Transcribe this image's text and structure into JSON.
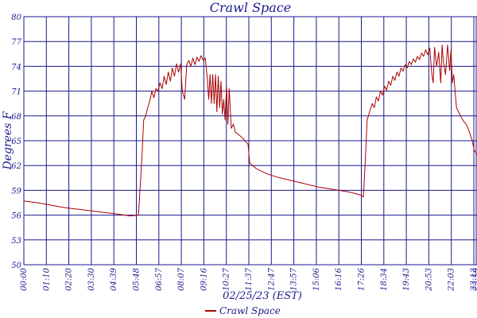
{
  "chart_data": {
    "type": "line",
    "title": "Crawl Space",
    "xlabel": "02/25/23 (EST)",
    "ylabel": "Degrees F",
    "yticks": [
      50,
      53,
      56,
      59,
      62,
      65,
      68,
      71,
      74,
      77,
      80
    ],
    "ylim": [
      50,
      80
    ],
    "xtick_labels": [
      "00:00",
      "01:10",
      "02:20",
      "03:30",
      "04:39",
      "05:48",
      "06:57",
      "08:07",
      "09:16",
      "10:27",
      "11:37",
      "12:47",
      "13:57",
      "15:06",
      "16:16",
      "17:26",
      "18:34",
      "19:43",
      "20:53",
      "22:03",
      "23:12",
      "23:59"
    ],
    "grid": true,
    "legend": "bottom-center",
    "series": [
      {
        "name": "Crawl Space",
        "color": "#aa0000",
        "points": [
          [
            0,
            57.7
          ],
          [
            40,
            57.5
          ],
          [
            80,
            57.2
          ],
          [
            120,
            56.9
          ],
          [
            160,
            56.7
          ],
          [
            200,
            56.5
          ],
          [
            240,
            56.3
          ],
          [
            280,
            56.1
          ],
          [
            310,
            55.9
          ],
          [
            335,
            56.0
          ],
          [
            345,
            63.0
          ],
          [
            350,
            67.5
          ],
          [
            356,
            68.0
          ],
          [
            362,
            69.0
          ],
          [
            368,
            69.8
          ],
          [
            374,
            71.0
          ],
          [
            380,
            70.2
          ],
          [
            386,
            71.3
          ],
          [
            392,
            71.0
          ],
          [
            398,
            72.0
          ],
          [
            404,
            71.3
          ],
          [
            410,
            72.8
          ],
          [
            416,
            71.8
          ],
          [
            422,
            73.3
          ],
          [
            428,
            72.2
          ],
          [
            434,
            73.8
          ],
          [
            440,
            72.8
          ],
          [
            446,
            74.3
          ],
          [
            452,
            73.3
          ],
          [
            458,
            74.3
          ],
          [
            463,
            71.0
          ],
          [
            470,
            70.0
          ],
          [
            476,
            74.2
          ],
          [
            482,
            74.7
          ],
          [
            488,
            74.0
          ],
          [
            494,
            75.0
          ],
          [
            500,
            74.2
          ],
          [
            506,
            75.1
          ],
          [
            512,
            74.6
          ],
          [
            518,
            75.3
          ],
          [
            524,
            74.7
          ],
          [
            530,
            75.0
          ],
          [
            536,
            72.5
          ],
          [
            540,
            70.0
          ],
          [
            544,
            73.0
          ],
          [
            548,
            69.5
          ],
          [
            552,
            73.0
          ],
          [
            556,
            69.5
          ],
          [
            560,
            73.0
          ],
          [
            564,
            68.5
          ],
          [
            568,
            72.8
          ],
          [
            572,
            69.0
          ],
          [
            576,
            72.2
          ],
          [
            580,
            68.2
          ],
          [
            584,
            70.0
          ],
          [
            588,
            67.5
          ],
          [
            592,
            71.5
          ],
          [
            596,
            67.0
          ],
          [
            600,
            71.3
          ],
          [
            606,
            66.5
          ],
          [
            612,
            67.0
          ],
          [
            618,
            66.0
          ],
          [
            626,
            65.8
          ],
          [
            634,
            65.5
          ],
          [
            642,
            65.2
          ],
          [
            650,
            64.8
          ],
          [
            655,
            64.6
          ],
          [
            660,
            62.3
          ],
          [
            680,
            61.6
          ],
          [
            710,
            61.0
          ],
          [
            740,
            60.6
          ],
          [
            770,
            60.3
          ],
          [
            800,
            60.0
          ],
          [
            830,
            59.7
          ],
          [
            860,
            59.4
          ],
          [
            890,
            59.2
          ],
          [
            920,
            59.0
          ],
          [
            950,
            58.8
          ],
          [
            970,
            58.6
          ],
          [
            985,
            58.4
          ],
          [
            992,
            58.2
          ],
          [
            998,
            63.0
          ],
          [
            1003,
            67.5
          ],
          [
            1010,
            68.5
          ],
          [
            1018,
            69.5
          ],
          [
            1024,
            69.0
          ],
          [
            1030,
            70.3
          ],
          [
            1036,
            69.8
          ],
          [
            1042,
            71.0
          ],
          [
            1048,
            70.5
          ],
          [
            1054,
            71.6
          ],
          [
            1060,
            71.1
          ],
          [
            1066,
            72.2
          ],
          [
            1072,
            71.7
          ],
          [
            1078,
            72.8
          ],
          [
            1084,
            72.3
          ],
          [
            1090,
            73.3
          ],
          [
            1096,
            72.8
          ],
          [
            1102,
            73.8
          ],
          [
            1108,
            73.4
          ],
          [
            1114,
            74.2
          ],
          [
            1120,
            73.8
          ],
          [
            1126,
            74.6
          ],
          [
            1132,
            74.2
          ],
          [
            1138,
            74.9
          ],
          [
            1144,
            74.5
          ],
          [
            1150,
            75.2
          ],
          [
            1156,
            74.8
          ],
          [
            1162,
            75.6
          ],
          [
            1168,
            75.2
          ],
          [
            1174,
            76.0
          ],
          [
            1180,
            75.4
          ],
          [
            1186,
            76.2
          ],
          [
            1192,
            73.0
          ],
          [
            1196,
            72.0
          ],
          [
            1200,
            76.3
          ],
          [
            1206,
            74.0
          ],
          [
            1212,
            75.7
          ],
          [
            1218,
            72.0
          ],
          [
            1222,
            76.6
          ],
          [
            1226,
            74.5
          ],
          [
            1232,
            73.0
          ],
          [
            1238,
            76.6
          ],
          [
            1244,
            73.5
          ],
          [
            1248,
            76.0
          ],
          [
            1252,
            72.0
          ],
          [
            1256,
            73.0
          ],
          [
            1260,
            71.0
          ],
          [
            1264,
            69.0
          ],
          [
            1270,
            68.5
          ],
          [
            1278,
            67.8
          ],
          [
            1286,
            67.3
          ],
          [
            1292,
            67.0
          ],
          [
            1298,
            66.5
          ],
          [
            1304,
            65.8
          ],
          [
            1310,
            65.0
          ],
          [
            1316,
            63.8
          ],
          [
            1320,
            63.6
          ],
          [
            1324,
            63.3
          ]
        ]
      }
    ]
  }
}
